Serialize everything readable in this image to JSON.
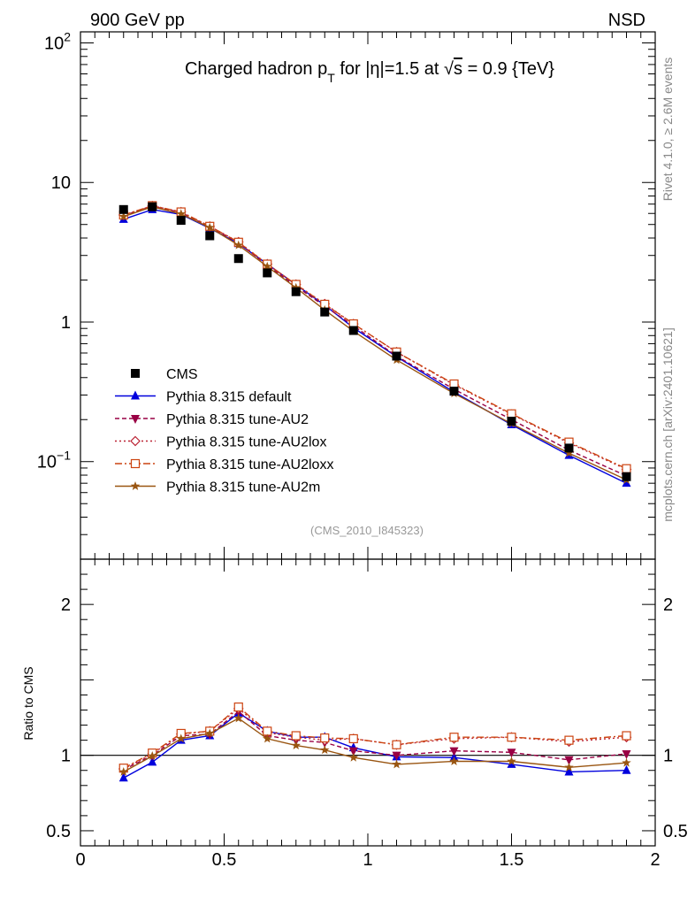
{
  "header": {
    "left": "900 GeV pp",
    "right": "NSD"
  },
  "side_labels": {
    "rivet": "Rivet 4.1.0, ≥ 2.6M events",
    "mcplots": "mcplots.cern.ch [arXiv:2401.10621]"
  },
  "chart_data": {
    "type": "line",
    "title": "Charged hadron p_T for |η|=1.5 at √s = 0.9 {TeV}",
    "title_parts": {
      "prefix": "Charged hadron p",
      "sub": "T",
      "mid": " for |η|=1.5 at ",
      "root": "√",
      "s": "s",
      "suffix": " = 0.9 {TeV}"
    },
    "analysis_label": "(CMS_2010_I845323)",
    "xlabel": "",
    "ylabel": "",
    "xlim": [
      0,
      2
    ],
    "ylim": [
      0.02,
      120
    ],
    "yscale": "log",
    "x_ticks": [
      {
        "v": 0,
        "label": "0"
      },
      {
        "v": 0.5,
        "label": "0.5"
      },
      {
        "v": 1,
        "label": "1"
      },
      {
        "v": 1.5,
        "label": "1.5"
      },
      {
        "v": 2,
        "label": "2"
      }
    ],
    "y_tick_labels": [
      {
        "v": 100,
        "base": "10",
        "exp": "2"
      },
      {
        "v": 10,
        "base": "10",
        "exp": ""
      },
      {
        "v": 1,
        "base": "1",
        "exp": ""
      },
      {
        "v": 0.1,
        "base": "10",
        "exp": "−1"
      }
    ],
    "x": [
      0.15,
      0.25,
      0.35,
      0.45,
      0.55,
      0.65,
      0.75,
      0.85,
      0.95,
      1.1,
      1.3,
      1.5,
      1.7,
      1.9
    ],
    "data": {
      "name": "CMS",
      "values": [
        6.4,
        6.7,
        5.35,
        4.15,
        2.85,
        2.25,
        1.65,
        1.18,
        0.87,
        0.57,
        0.32,
        0.195,
        0.125,
        0.078
      ]
    },
    "series": [
      {
        "name": "Pythia 8.315 default",
        "color": "#0000dd",
        "dash": "",
        "marker": "triangle",
        "values": [
          5.45,
          6.4,
          5.9,
          4.7,
          3.65,
          2.6,
          1.85,
          1.32,
          0.91,
          0.565,
          0.315,
          0.184,
          0.111,
          0.07
        ]
      },
      {
        "name": "Pythia 8.315 tune-AU2",
        "color": "#990044",
        "dash": "5,3",
        "marker": "triangle-down",
        "values": [
          5.8,
          6.75,
          6.1,
          4.8,
          3.7,
          2.55,
          1.8,
          1.3,
          0.94,
          0.57,
          0.33,
          0.2,
          0.121,
          0.079
        ]
      },
      {
        "name": "Pythia 8.315 tune-AU2lox",
        "color": "#bb2233",
        "dash": "2,3",
        "marker": "diamond",
        "values": [
          5.85,
          6.8,
          6.15,
          4.85,
          3.75,
          2.6,
          1.86,
          1.35,
          0.97,
          0.61,
          0.355,
          0.218,
          0.136,
          0.088
        ]
      },
      {
        "name": "Pythia 8.315 tune-AU2loxx",
        "color": "#cc4411",
        "dash": "8,3,2,3",
        "marker": "square",
        "values": [
          5.85,
          6.82,
          6.15,
          4.85,
          3.73,
          2.6,
          1.86,
          1.34,
          0.97,
          0.61,
          0.36,
          0.22,
          0.138,
          0.089
        ]
      },
      {
        "name": "Pythia 8.315 tune-AU2m",
        "color": "#995511",
        "dash": "",
        "marker": "star",
        "values": [
          5.7,
          6.7,
          5.95,
          4.75,
          3.55,
          2.5,
          1.76,
          1.22,
          0.86,
          0.535,
          0.308,
          0.187,
          0.115,
          0.074
        ]
      }
    ],
    "ratio": {
      "ylabel": "Ratio to CMS",
      "ylim": [
        0.4,
        2.3
      ],
      "y_ticks": [
        {
          "v": 0.5,
          "label": "0.5"
        },
        {
          "v": 1,
          "label": "1"
        },
        {
          "v": 2,
          "label": "2"
        }
      ],
      "series": [
        {
          "name": "Pythia 8.315 default",
          "values": [
            0.85,
            0.955,
            1.1,
            1.13,
            1.28,
            1.16,
            1.12,
            1.12,
            1.05,
            0.99,
            0.985,
            0.94,
            0.89,
            0.9
          ]
        },
        {
          "name": "Pythia 8.315 tune-AU2",
          "values": [
            0.905,
            1.0,
            1.13,
            1.14,
            1.29,
            1.13,
            1.1,
            1.085,
            1.03,
            1.0,
            1.03,
            1.02,
            0.97,
            1.01
          ]
        },
        {
          "name": "Pythia 8.315 tune-AU2lox",
          "values": [
            0.91,
            1.01,
            1.14,
            1.16,
            1.31,
            1.15,
            1.12,
            1.1,
            1.11,
            1.07,
            1.11,
            1.12,
            1.09,
            1.12
          ]
        },
        {
          "name": "Pythia 8.315 tune-AU2loxx",
          "values": [
            0.915,
            1.015,
            1.145,
            1.16,
            1.32,
            1.16,
            1.13,
            1.115,
            1.11,
            1.07,
            1.12,
            1.12,
            1.1,
            1.13
          ]
        },
        {
          "name": "Pythia 8.315 tune-AU2m",
          "values": [
            0.89,
            0.995,
            1.11,
            1.145,
            1.245,
            1.11,
            1.065,
            1.035,
            0.985,
            0.94,
            0.96,
            0.96,
            0.92,
            0.95
          ]
        }
      ]
    }
  }
}
